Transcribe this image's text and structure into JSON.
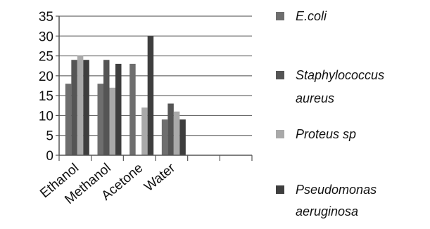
{
  "chart_data": {
    "type": "bar",
    "categories": [
      "Ethanol",
      "Methanol",
      "Acetone",
      "Water",
      "",
      ""
    ],
    "series": [
      {
        "name": "E.coli",
        "values": [
          18,
          18,
          23,
          9,
          null,
          null
        ],
        "color": "#6e6e6e"
      },
      {
        "name": "Staphylococcus aureus",
        "values": [
          24,
          24,
          0,
          13,
          null,
          null
        ],
        "color": "#555555"
      },
      {
        "name": "Proteus sp",
        "values": [
          25,
          17,
          12,
          11,
          null,
          null
        ],
        "color": "#a9a9a9"
      },
      {
        "name": "Pseudomonas aeruginosa",
        "values": [
          24,
          23,
          30,
          9,
          null,
          null
        ],
        "color": "#3e3e3e"
      }
    ],
    "ylim": [
      0,
      35
    ],
    "yticks": [
      "0",
      "5",
      "10",
      "15",
      "20",
      "25",
      "30",
      "35"
    ],
    "ylabel": "",
    "xlabel": "",
    "title": "",
    "grid": true,
    "legend": {
      "position": "right",
      "items": [
        {
          "lines": [
            "E.coli"
          ]
        },
        {
          "lines": [
            "Staphylococcus",
            "aureus"
          ]
        },
        {
          "lines": [
            "Proteus sp"
          ]
        },
        {
          "lines": [
            "Pseudomonas",
            "aeruginosa"
          ]
        }
      ]
    }
  }
}
